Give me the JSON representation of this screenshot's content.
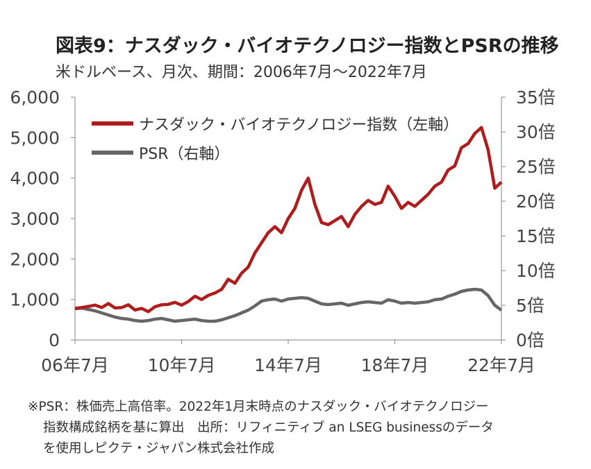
{
  "chart_data": {
    "type": "line",
    "title": "図表9：ナスダック・バイオテクノロジー指数とPSRの推移",
    "subtitle": "米ドルベース、月次、期間：2006年7月～2022年7月",
    "x_tick_labels": [
      "06年7月",
      "10年7月",
      "14年7月",
      "18年7月",
      "22年7月"
    ],
    "x_tick_years": [
      2006.5,
      2010.5,
      2014.5,
      2018.5,
      2022.5
    ],
    "xlim": [
      2006.5,
      2022.5
    ],
    "left_axis": {
      "ylim": [
        0,
        6000
      ],
      "ticks": [
        0,
        1000,
        2000,
        3000,
        4000,
        5000,
        6000
      ],
      "tick_labels": [
        "0",
        "1,000",
        "2,000",
        "3,000",
        "4,000",
        "5,000",
        "6,000"
      ]
    },
    "right_axis": {
      "ylim": [
        0,
        35
      ],
      "ticks": [
        0,
        5,
        10,
        15,
        20,
        25,
        30,
        35
      ],
      "tick_labels": [
        "0倍",
        "5倍",
        "10倍",
        "15倍",
        "20倍",
        "25倍",
        "30倍",
        "35倍"
      ]
    },
    "legend_position": "top-left",
    "series": [
      {
        "name": "ナスダック・バイオテクノロジー指数（左軸）",
        "axis": "left",
        "color": "#b01c1c",
        "x": [
          2006.5,
          2006.75,
          2007.0,
          2007.25,
          2007.5,
          2007.75,
          2008.0,
          2008.25,
          2008.5,
          2008.75,
          2009.0,
          2009.25,
          2009.5,
          2009.75,
          2010.0,
          2010.25,
          2010.5,
          2010.75,
          2011.0,
          2011.25,
          2011.5,
          2011.75,
          2012.0,
          2012.25,
          2012.5,
          2012.75,
          2013.0,
          2013.25,
          2013.5,
          2013.75,
          2014.0,
          2014.25,
          2014.5,
          2014.75,
          2015.0,
          2015.25,
          2015.5,
          2015.75,
          2016.0,
          2016.25,
          2016.5,
          2016.75,
          2017.0,
          2017.25,
          2017.5,
          2017.75,
          2018.0,
          2018.25,
          2018.5,
          2018.75,
          2019.0,
          2019.25,
          2019.5,
          2019.75,
          2020.0,
          2020.25,
          2020.5,
          2020.75,
          2021.0,
          2021.25,
          2021.5,
          2021.75,
          2022.0,
          2022.25,
          2022.5
        ],
        "values": [
          780,
          800,
          830,
          860,
          800,
          900,
          790,
          800,
          870,
          740,
          780,
          700,
          820,
          870,
          880,
          930,
          860,
          950,
          1080,
          1000,
          1100,
          1160,
          1250,
          1500,
          1400,
          1650,
          1800,
          2150,
          2400,
          2650,
          2800,
          2650,
          3000,
          3250,
          3700,
          4000,
          3350,
          2900,
          2850,
          2950,
          3050,
          2800,
          3100,
          3300,
          3450,
          3350,
          3400,
          3800,
          3550,
          3250,
          3400,
          3300,
          3450,
          3600,
          3800,
          3900,
          4200,
          4300,
          4750,
          4850,
          5100,
          5250,
          4700,
          3750,
          3900
        ]
      },
      {
        "name": "PSR（右軸）",
        "axis": "right",
        "color": "#666666",
        "x": [
          2006.5,
          2006.75,
          2007.0,
          2007.25,
          2007.5,
          2007.75,
          2008.0,
          2008.25,
          2008.5,
          2008.75,
          2009.0,
          2009.25,
          2009.5,
          2009.75,
          2010.0,
          2010.25,
          2010.5,
          2010.75,
          2011.0,
          2011.25,
          2011.5,
          2011.75,
          2012.0,
          2012.25,
          2012.5,
          2012.75,
          2013.0,
          2013.25,
          2013.5,
          2013.75,
          2014.0,
          2014.25,
          2014.5,
          2014.75,
          2015.0,
          2015.25,
          2015.5,
          2015.75,
          2016.0,
          2016.25,
          2016.5,
          2016.75,
          2017.0,
          2017.25,
          2017.5,
          2017.75,
          2018.0,
          2018.25,
          2018.5,
          2018.75,
          2019.0,
          2019.25,
          2019.5,
          2019.75,
          2020.0,
          2020.25,
          2020.5,
          2020.75,
          2021.0,
          2021.25,
          2021.5,
          2021.75,
          2022.0,
          2022.25,
          2022.5
        ],
        "values": [
          4.5,
          4.6,
          4.4,
          4.2,
          3.9,
          3.6,
          3.3,
          3.1,
          3.0,
          2.8,
          2.7,
          2.8,
          3.0,
          3.1,
          2.9,
          2.7,
          2.8,
          2.9,
          3.0,
          2.8,
          2.7,
          2.7,
          2.9,
          3.2,
          3.5,
          3.9,
          4.3,
          4.9,
          5.6,
          5.8,
          5.9,
          5.6,
          5.9,
          6.0,
          6.1,
          6.0,
          5.6,
          5.2,
          5.1,
          5.2,
          5.3,
          5.0,
          5.2,
          5.4,
          5.5,
          5.4,
          5.3,
          5.8,
          5.6,
          5.3,
          5.4,
          5.3,
          5.4,
          5.5,
          5.8,
          5.9,
          6.3,
          6.6,
          7.0,
          7.2,
          7.3,
          7.2,
          6.4,
          5.0,
          4.3
        ]
      }
    ]
  },
  "footnote": {
    "line1": "※PSR：株価売上高倍率。2022年1月末時点のナスダック・バイオテクノロジー",
    "line2": "指数構成銘柄を基に算出　出所：リフィニティブ an LSEG businessのデータ",
    "line3": "を使用しピクテ・ジャパン株式会社作成"
  }
}
